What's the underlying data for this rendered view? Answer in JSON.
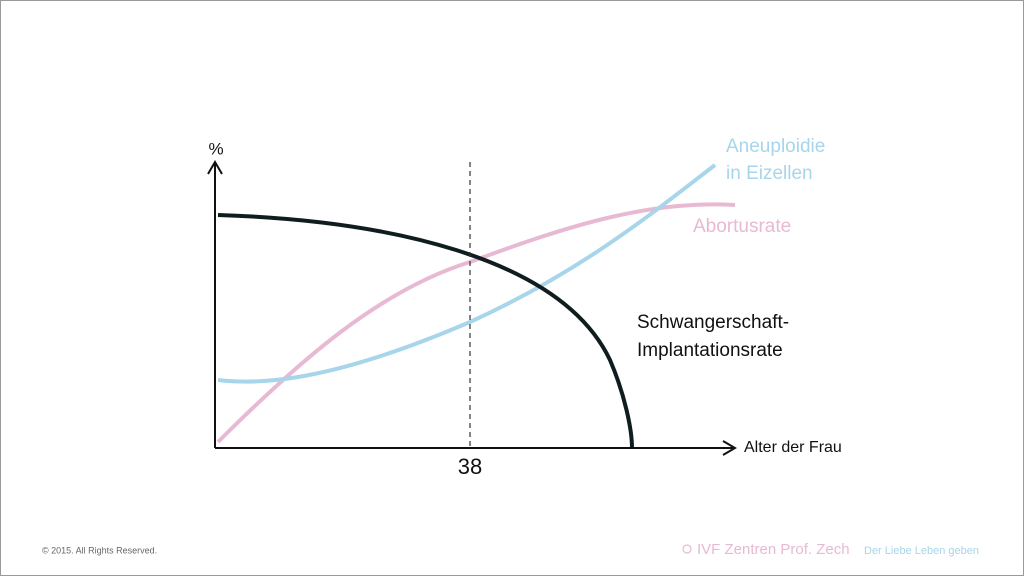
{
  "axes": {
    "y_label": "%",
    "x_label": "Alter der Frau",
    "marker": "38"
  },
  "curves": [
    {
      "lines": [
        "Aneuploidie",
        "in Eizellen"
      ]
    },
    {
      "lines": [
        "Abortusrate"
      ]
    },
    {
      "lines": [
        "Schwangerschaft-",
        "Implantationsrate"
      ]
    }
  ],
  "footer": {
    "copyright": "© 2015. All Rights Reserved.",
    "brand": "IVF Zentren Prof. Zech",
    "slogan": "Der Liebe Leben geben"
  }
}
